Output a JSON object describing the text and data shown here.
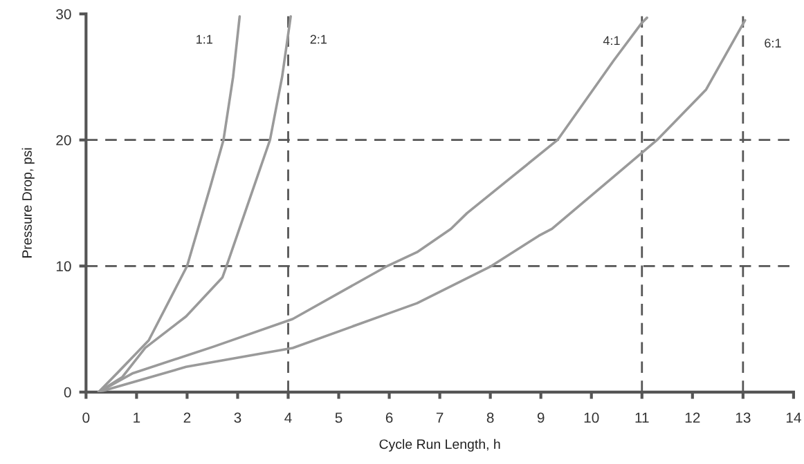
{
  "chart_data": {
    "type": "line",
    "xlabel": "Cycle Run Length, h",
    "ylabel": "Pressure Drop, psi",
    "xlim": [
      0,
      14
    ],
    "ylim": [
      0,
      30
    ],
    "xticks": [
      0,
      1,
      2,
      3,
      4,
      5,
      6,
      7,
      8,
      9,
      10,
      11,
      12,
      13,
      14
    ],
    "yticks": [
      0,
      10,
      20,
      30
    ],
    "grid": false,
    "legend": false,
    "marker": "none",
    "line_style": "solid",
    "series": [
      {
        "name": "1:1",
        "color": "#9a9a9a",
        "x": [
          0.25,
          0.64,
          1.24,
          2.0,
          2.46,
          2.72,
          2.91,
          3.04
        ],
        "values": [
          0,
          1.6,
          4.1,
          10,
          16.3,
          20,
          25,
          29.8
        ]
      },
      {
        "name": "2:1",
        "color": "#9a9a9a",
        "x": [
          0.25,
          0.72,
          1.17,
          1.98,
          2.7,
          2.78,
          3.64,
          3.88,
          4.05
        ],
        "values": [
          0,
          1.2,
          3.5,
          6.0,
          9.1,
          10,
          20,
          25,
          29.8
        ]
      },
      {
        "name": "4:1",
        "color": "#9a9a9a",
        "x": [
          0.25,
          0.93,
          2.52,
          4.09,
          5.96,
          6.55,
          7.22,
          7.54,
          9.33,
          10.44,
          11.0,
          11.1
        ],
        "values": [
          0,
          1.5,
          3.6,
          5.8,
          10,
          11.1,
          12.95,
          14.2,
          20,
          26.3,
          29.3,
          29.7
        ]
      },
      {
        "name": "6:1",
        "color": "#9a9a9a",
        "x": [
          0.25,
          1.98,
          4.09,
          5.96,
          6.55,
          8.02,
          8.96,
          9.22,
          11.3,
          12.27,
          13.04
        ],
        "values": [
          0,
          2.0,
          3.5,
          6.2,
          7.05,
          10,
          12.4,
          12.95,
          20,
          24.0,
          29.5
        ]
      }
    ],
    "ref_lines": [
      {
        "axis": "y",
        "value": 10,
        "color": "#555555",
        "line_style": "dashed"
      },
      {
        "axis": "y",
        "value": 20,
        "color": "#555555",
        "line_style": "dashed"
      },
      {
        "axis": "x",
        "value": 4,
        "color": "#555555",
        "line_style": "dashed"
      },
      {
        "axis": "x",
        "value": 11,
        "color": "#555555",
        "line_style": "dashed"
      },
      {
        "axis": "x",
        "value": 13,
        "color": "#555555",
        "line_style": "dashed"
      }
    ]
  }
}
